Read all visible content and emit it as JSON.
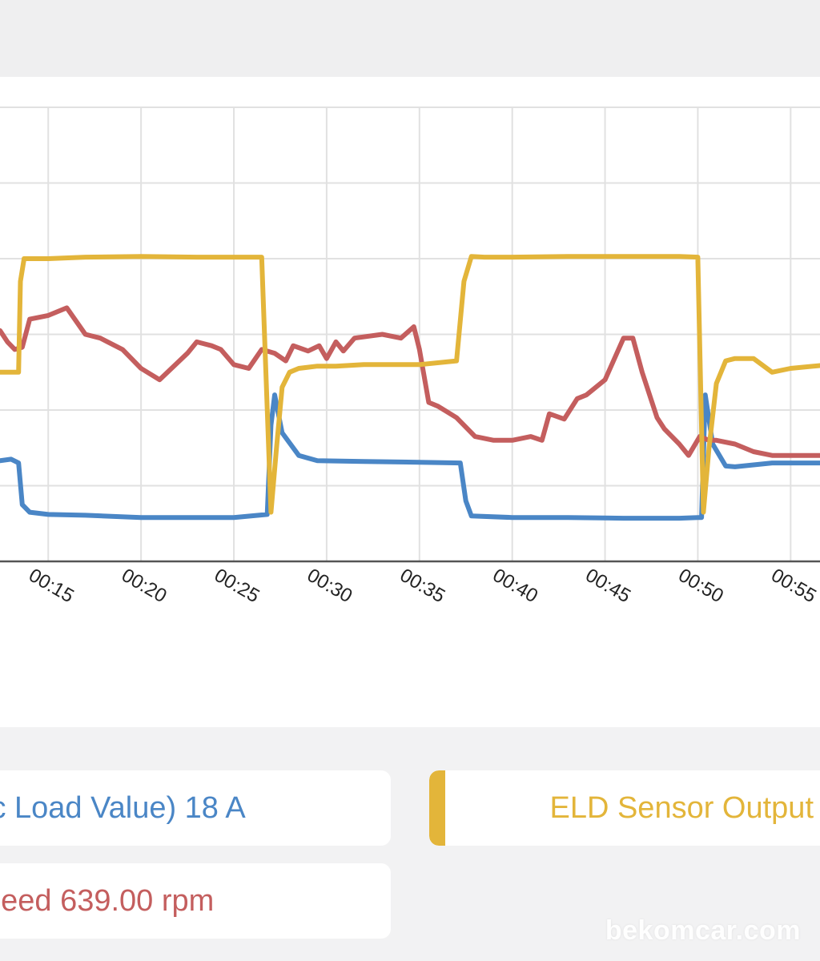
{
  "chart_data": {
    "type": "line",
    "x_tick_labels": [
      "00:15",
      "00:20",
      "00:25",
      "00:30",
      "00:35",
      "00:40",
      "00:45",
      "00:50",
      "00:55"
    ],
    "x_tick_seconds": [
      15,
      20,
      25,
      30,
      35,
      40,
      45,
      50,
      55
    ],
    "x_range_seconds": [
      12.4,
      57.1
    ],
    "y_range_units": [
      0,
      6
    ],
    "y_tick_labels_visible": false,
    "grid": true,
    "series": [
      {
        "legend": "legend.load",
        "color": "#4a86c6",
        "x": [
          12.4,
          13.0,
          13.4,
          13.6,
          14.0,
          15.0,
          17.0,
          20.0,
          23.0,
          25.0,
          26.8,
          27.0,
          27.2,
          27.6,
          28.5,
          29.5,
          32.0,
          35.0,
          37.2,
          37.5,
          37.8,
          40.0,
          43.0,
          46.0,
          49.0,
          50.0,
          50.2,
          50.4,
          50.8,
          51.5,
          52.0,
          54.0,
          57.1
        ],
        "y": [
          1.33,
          1.35,
          1.3,
          0.75,
          0.65,
          0.62,
          0.61,
          0.58,
          0.58,
          0.58,
          0.62,
          1.8,
          2.2,
          1.7,
          1.4,
          1.33,
          1.32,
          1.31,
          1.3,
          0.8,
          0.6,
          0.58,
          0.58,
          0.57,
          0.57,
          0.58,
          0.58,
          2.2,
          1.55,
          1.26,
          1.25,
          1.3,
          1.3
        ]
      },
      {
        "legend": "legend.rpm",
        "color": "#c45e5e",
        "x": [
          12.4,
          12.8,
          13.2,
          13.6,
          14.0,
          15.0,
          16.0,
          17.0,
          17.8,
          18.2,
          19.0,
          20.0,
          21.0,
          22.5,
          23.0,
          23.8,
          24.3,
          25.0,
          25.8,
          26.5,
          27.2,
          27.8,
          28.2,
          29.0,
          29.6,
          30.0,
          30.5,
          30.9,
          31.5,
          33.0,
          34.0,
          34.7,
          35.0,
          35.5,
          36.0,
          37.0,
          38.0,
          39.0,
          40.0,
          41.0,
          41.6,
          42.0,
          42.8,
          43.5,
          44.0,
          45.0,
          46.0,
          46.5,
          47.0,
          47.8,
          48.2,
          49.0,
          49.5,
          50.1,
          50.6,
          51.0,
          52.0,
          53.0,
          54.0,
          55.0,
          56.0,
          57.1
        ],
        "y": [
          3.05,
          2.9,
          2.8,
          2.83,
          3.2,
          3.25,
          3.35,
          3.0,
          2.95,
          2.9,
          2.8,
          2.55,
          2.4,
          2.75,
          2.9,
          2.85,
          2.8,
          2.6,
          2.55,
          2.8,
          2.75,
          2.65,
          2.85,
          2.78,
          2.85,
          2.68,
          2.9,
          2.78,
          2.95,
          3.0,
          2.95,
          3.1,
          2.8,
          2.1,
          2.05,
          1.9,
          1.65,
          1.6,
          1.6,
          1.65,
          1.6,
          1.95,
          1.88,
          2.15,
          2.2,
          2.4,
          2.95,
          2.95,
          2.5,
          1.9,
          1.75,
          1.55,
          1.4,
          1.65,
          1.6,
          1.6,
          1.55,
          1.45,
          1.4,
          1.4,
          1.4,
          1.4
        ]
      },
      {
        "legend": "legend.eld",
        "color": "#e3b53a",
        "x": [
          12.4,
          13.0,
          13.4,
          13.5,
          13.7,
          14.0,
          15.0,
          17.0,
          20.0,
          23.0,
          25.0,
          26.5,
          27.0,
          27.3,
          27.6,
          28.0,
          28.5,
          29.5,
          30.5,
          32.0,
          35.0,
          37.0,
          37.4,
          37.8,
          38.5,
          40.0,
          43.0,
          46.0,
          49.0,
          50.0,
          50.3,
          50.6,
          51.0,
          51.5,
          52.0,
          53.0,
          54.0,
          55.0,
          57.1
        ],
        "y": [
          2.5,
          2.5,
          2.5,
          3.7,
          4.0,
          4.0,
          4.0,
          4.02,
          4.03,
          4.02,
          4.02,
          4.02,
          0.65,
          1.5,
          2.3,
          2.5,
          2.55,
          2.58,
          2.58,
          2.6,
          2.6,
          2.65,
          3.7,
          4.03,
          4.02,
          4.02,
          4.03,
          4.03,
          4.03,
          4.02,
          0.65,
          1.5,
          2.35,
          2.65,
          2.68,
          2.68,
          2.5,
          2.55,
          2.6
        ]
      }
    ]
  },
  "legend": {
    "load": "ic Load Value) 18 A",
    "rpm": "peed 639.00 rpm",
    "eld": "ELD Sensor Output"
  },
  "colors": {
    "load": "#4a86c6",
    "rpm": "#c45e5e",
    "eld": "#e3b53a",
    "grid": "#e1e1e1",
    "axis": "#555555"
  },
  "watermark": "bekomcar.com"
}
